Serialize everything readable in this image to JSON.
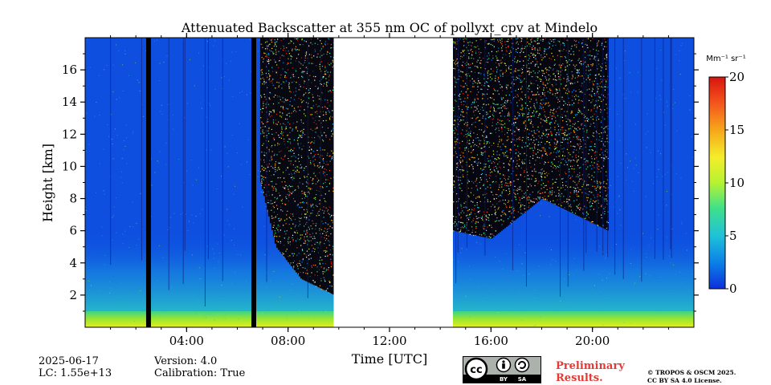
{
  "chart_data": {
    "type": "heatmap",
    "title": "Attenuated Backscatter at 355 nm OC of pollyxt_cpv at Mindelo",
    "xlabel": "Time [UTC]",
    "ylabel": "Height [km]",
    "xlim": [
      0,
      24
    ],
    "ylim": [
      0,
      18
    ],
    "xticks": [
      4,
      8,
      12,
      16,
      20
    ],
    "xtick_labels": [
      "04:00",
      "08:00",
      "12:00",
      "16:00",
      "20:00"
    ],
    "yticks": [
      2,
      4,
      6,
      8,
      10,
      12,
      14,
      16
    ],
    "ytick_labels": [
      "2",
      "4",
      "6",
      "8",
      "10",
      "12",
      "14",
      "16"
    ],
    "colorbar": {
      "label": "Mm⁻¹ sr⁻¹",
      "range": [
        0,
        20
      ],
      "ticks": [
        0,
        5,
        10,
        15,
        20
      ],
      "tick_labels": [
        "0",
        "5",
        "10",
        "15",
        "20"
      ],
      "colormap": "jet"
    },
    "no_data_periods_utc": [
      [
        9.8,
        14.5
      ]
    ],
    "dark_gap_lines_utc": [
      2.5,
      6.65
    ],
    "night_noisy_segments_utc": [
      [
        6.9,
        9.8
      ],
      [
        14.5,
        20.6
      ]
    ],
    "surface_layer_top_km": 1.0,
    "noise_onset_heights_km": [
      {
        "t": 6.9,
        "h": 9.0
      },
      {
        "t": 7.5,
        "h": 5.0
      },
      {
        "t": 8.5,
        "h": 3.0
      },
      {
        "t": 9.8,
        "h": 2.0
      },
      {
        "t": 14.5,
        "h": 6.0
      },
      {
        "t": 16.0,
        "h": 5.5
      },
      {
        "t": 18.0,
        "h": 8.0
      },
      {
        "t": 20.6,
        "h": 6.0
      }
    ]
  },
  "footer": {
    "date": "2025-06-17",
    "lc": "LC: 1.55e+13",
    "version": "Version: 4.0",
    "calibration": "Calibration: True",
    "preliminary_line1": "Preliminary",
    "preliminary_line2": "Results.",
    "copyright_line1": "© TROPOS & OSCM 2025.",
    "copyright_line2": "CC BY SA 4.0 License.",
    "cc_by": "BY",
    "cc_sa": "SA",
    "cc_cc": "cc"
  }
}
